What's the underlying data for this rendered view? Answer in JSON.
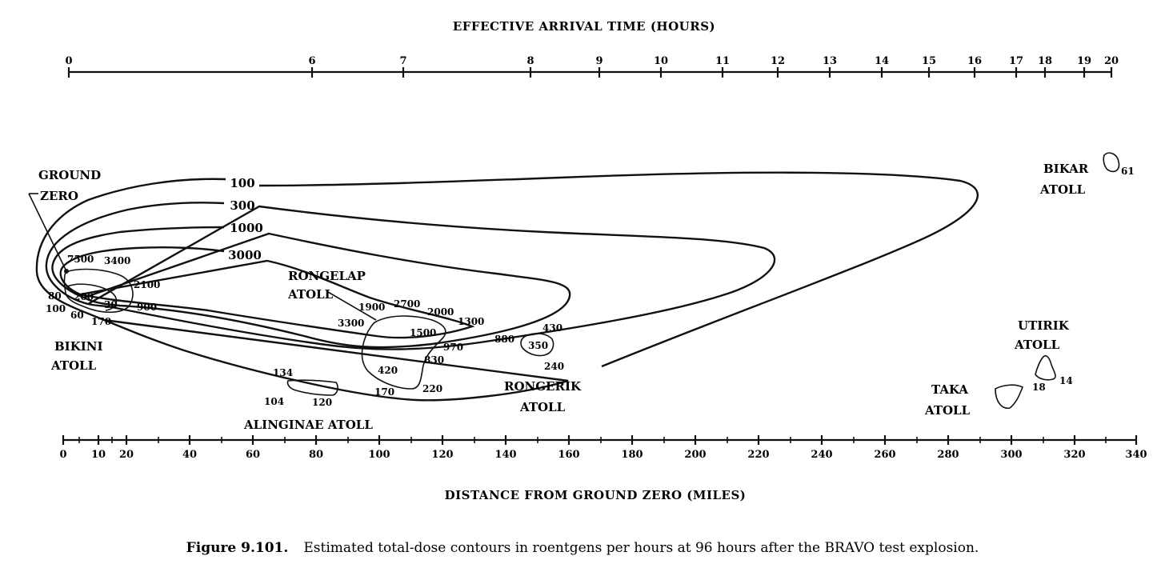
{
  "top_axis": {
    "title": "EFFECTIVE ARRIVAL TIME (HOURS)",
    "ticks": [
      "0",
      "6",
      "7",
      "8",
      "9",
      "10",
      "11",
      "12",
      "13",
      "14",
      "15",
      "16",
      "17",
      "18",
      "19",
      "20"
    ]
  },
  "bottom_axis": {
    "title": "DISTANCE FROM GROUND ZERO (MILES)",
    "ticks": [
      "0",
      "10",
      "20",
      "40",
      "60",
      "80",
      "100",
      "120",
      "140",
      "160",
      "180",
      "200",
      "220",
      "240",
      "260",
      "280",
      "300",
      "320",
      "340"
    ]
  },
  "contour_labels": [
    "100",
    "300",
    "1000",
    "3000"
  ],
  "places": {
    "ground_zero_1": "GROUND",
    "ground_zero_2": "ZERO",
    "bikini_1": "BIKINI",
    "bikini_2": "ATOLL",
    "rongelap_1": "RONGELAP",
    "rongelap_2": "ATOLL",
    "rongerik_1": "RONGERIK",
    "rongerik_2": "ATOLL",
    "ailinginae": "ALINGINAE ATOLL",
    "bikar_1": "BIKAR",
    "bikar_2": "ATOLL",
    "utirik_1": "UTIRIK",
    "utirik_2": "ATOLL",
    "taka_1": "TAKA",
    "taka_2": "ATOLL"
  },
  "readings": {
    "r7500": "7500",
    "r3400": "3400",
    "r2100": "2100",
    "r900": "900",
    "r80": "80",
    "r200": "200",
    "r100": "100",
    "r60": "60",
    "r30": "30",
    "r170a": "170",
    "r1900": "1900",
    "r2700": "2700",
    "r2000": "2000",
    "r1300": "1300",
    "r3300": "3300",
    "r1500": "1500",
    "r970": "970",
    "r830": "830",
    "r420": "420",
    "r170b": "170",
    "r220": "220",
    "r880": "880",
    "r430": "430",
    "r350": "350",
    "r240": "240",
    "r134": "134",
    "r104": "104",
    "r120": "120",
    "r61": "61",
    "r18": "18",
    "r14": "14"
  },
  "caption": {
    "figure": "Figure 9.101.",
    "text": "Estimated total-dose contours in roentgens per hours at 96 hours after the BRAVO test explosion."
  }
}
